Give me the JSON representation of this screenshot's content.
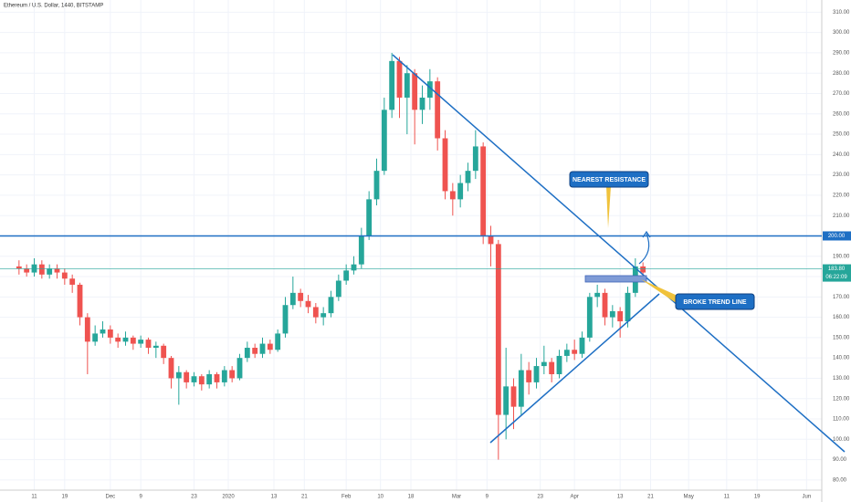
{
  "chart_data": {
    "type": "candlestick",
    "title": "Ethereum / U.S. Dollar, 1440, BITSTAMP",
    "x": [
      -4,
      -2,
      0,
      2,
      4,
      6,
      8,
      10,
      12,
      14,
      16,
      18,
      20,
      22,
      24,
      26,
      28,
      30,
      32,
      34,
      36,
      38,
      40,
      42,
      44,
      46,
      48,
      50,
      52,
      54,
      56,
      58,
      60,
      62,
      64,
      66,
      68,
      70,
      72,
      74,
      76,
      78,
      80,
      82,
      84,
      86,
      88,
      90,
      92,
      94,
      96,
      98,
      100,
      102,
      104,
      106,
      108,
      110,
      112,
      114,
      116,
      118,
      120,
      122,
      124,
      126,
      128,
      130,
      132,
      134,
      136,
      138,
      140,
      142,
      144,
      146,
      148,
      150,
      152,
      154,
      156,
      158,
      160
    ],
    "open": [
      185,
      184,
      182,
      186,
      181,
      184,
      182,
      179,
      176,
      160,
      148,
      152,
      154,
      150,
      148,
      150,
      147,
      149,
      145,
      146,
      140,
      130,
      133,
      128,
      131,
      127,
      132,
      128,
      134,
      130,
      140,
      145,
      142,
      147,
      144,
      152,
      166,
      172,
      168,
      165,
      160,
      162,
      170,
      178,
      183,
      186,
      200,
      218,
      232,
      262,
      286,
      268,
      280,
      262,
      268,
      276,
      248,
      222,
      218,
      226,
      232,
      244,
      200,
      196,
      112,
      126,
      116,
      134,
      128,
      136,
      138,
      132,
      141,
      144,
      142,
      150,
      170,
      172,
      160,
      163,
      158,
      172,
      185
    ],
    "high": [
      188,
      186,
      189,
      188,
      186,
      186,
      184,
      181,
      177,
      162,
      156,
      158,
      156,
      152,
      153,
      151,
      151,
      150,
      148,
      147,
      141,
      136,
      134,
      133,
      132,
      134,
      133,
      136,
      136,
      142,
      148,
      147,
      150,
      149,
      154,
      170,
      180,
      174,
      171,
      167,
      165,
      173,
      181,
      186,
      190,
      204,
      222,
      238,
      268,
      290,
      288,
      284,
      282,
      274,
      282,
      278,
      252,
      226,
      230,
      236,
      252,
      246,
      205,
      198,
      145,
      130,
      142,
      138,
      140,
      146,
      140,
      144,
      147,
      149,
      153,
      172,
      176,
      174,
      166,
      165,
      175,
      189,
      187
    ],
    "low": [
      181,
      180,
      180,
      179,
      179,
      179,
      176,
      172,
      156,
      132,
      146,
      150,
      147,
      145,
      146,
      144,
      145,
      142,
      140,
      137,
      125,
      117,
      125,
      126,
      124,
      125,
      125,
      126,
      128,
      129,
      138,
      140,
      140,
      142,
      143,
      150,
      164,
      165,
      162,
      157,
      156,
      160,
      168,
      176,
      181,
      184,
      198,
      215,
      230,
      258,
      258,
      250,
      245,
      255,
      262,
      242,
      218,
      210,
      214,
      222,
      228,
      196,
      185,
      90,
      100,
      105,
      112,
      122,
      125,
      132,
      128,
      130,
      138,
      139,
      140,
      148,
      165,
      156,
      155,
      150,
      155,
      170,
      180
    ],
    "close": [
      184,
      182,
      186,
      181,
      184,
      182,
      179,
      176,
      160,
      148,
      152,
      154,
      150,
      148,
      150,
      147,
      149,
      145,
      146,
      140,
      130,
      133,
      128,
      131,
      127,
      132,
      128,
      134,
      130,
      140,
      145,
      142,
      147,
      144,
      152,
      166,
      172,
      168,
      165,
      160,
      162,
      170,
      178,
      183,
      186,
      200,
      218,
      232,
      262,
      286,
      268,
      280,
      262,
      268,
      276,
      248,
      222,
      218,
      226,
      232,
      244,
      200,
      196,
      112,
      126,
      116,
      134,
      128,
      136,
      138,
      132,
      141,
      144,
      142,
      150,
      170,
      172,
      160,
      163,
      158,
      172,
      185,
      182
    ],
    "up_color": "#26a69a",
    "down_color": "#ef5350",
    "xlim": [
      -9,
      207
    ],
    "xticks": [
      {
        "value": 0,
        "label": "11"
      },
      {
        "value": 8,
        "label": "19"
      },
      {
        "value": 20,
        "label": "Dec"
      },
      {
        "value": 28,
        "label": "9"
      },
      {
        "value": 42,
        "label": "23"
      },
      {
        "value": 51,
        "label": "2020"
      },
      {
        "value": 63,
        "label": "13"
      },
      {
        "value": 71,
        "label": "21"
      },
      {
        "value": 82,
        "label": "Feb"
      },
      {
        "value": 91,
        "label": "10"
      },
      {
        "value": 99,
        "label": "18"
      },
      {
        "value": 111,
        "label": "Mar"
      },
      {
        "value": 119,
        "label": "9"
      },
      {
        "value": 133,
        "label": "23"
      },
      {
        "value": 142,
        "label": "Apr"
      },
      {
        "value": 154,
        "label": "13"
      },
      {
        "value": 162,
        "label": "21"
      },
      {
        "value": 172,
        "label": "May"
      },
      {
        "value": 182,
        "label": "11"
      },
      {
        "value": 190,
        "label": "19"
      },
      {
        "value": 203,
        "label": "Jun"
      }
    ],
    "ylim": [
      75,
      316
    ],
    "yticks": [
      {
        "value": 80,
        "label": "80.00"
      },
      {
        "value": 90,
        "label": "90.00"
      },
      {
        "value": 100,
        "label": "100.00"
      },
      {
        "value": 110,
        "label": "110.00"
      },
      {
        "value": 120,
        "label": "120.00"
      },
      {
        "value": 130,
        "label": "130.00"
      },
      {
        "value": 140,
        "label": "140.00"
      },
      {
        "value": 150,
        "label": "150.00"
      },
      {
        "value": 160,
        "label": "160.00"
      },
      {
        "value": 170,
        "label": "170.00"
      },
      {
        "value": 180,
        "label": "180.00"
      },
      {
        "value": 190,
        "label": "190.00"
      },
      {
        "value": 200,
        "label": "200.00"
      },
      {
        "value": 210,
        "label": "210.00"
      },
      {
        "value": 220,
        "label": "220.00"
      },
      {
        "value": 230,
        "label": "230.00"
      },
      {
        "value": 240,
        "label": "240.00"
      },
      {
        "value": 250,
        "label": "250.00"
      },
      {
        "value": 260,
        "label": "260.00"
      },
      {
        "value": 270,
        "label": "270.00"
      },
      {
        "value": 280,
        "label": "280.00"
      },
      {
        "value": 290,
        "label": "290.00"
      },
      {
        "value": 300,
        "label": "300.00"
      },
      {
        "value": 310,
        "label": "310.00"
      }
    ],
    "grid": true,
    "resistance": {
      "value": 200,
      "label": "200.00"
    },
    "last_price": {
      "value": 183.8,
      "label": "183.80"
    },
    "countdown": "06:22:09",
    "annotations": [
      "NEAREST RESISTANCE",
      "BROKE TREND LINE"
    ]
  }
}
